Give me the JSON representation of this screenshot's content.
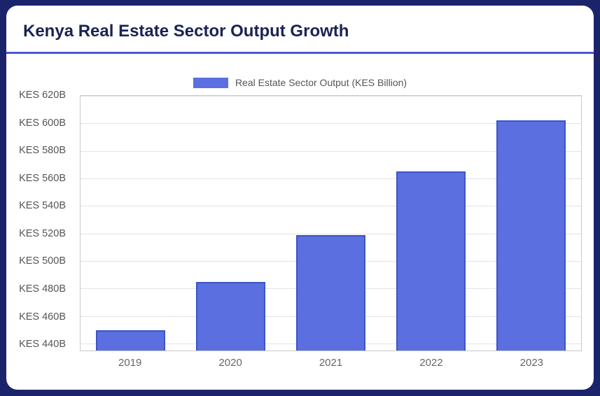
{
  "header": {
    "title": "Kenya Real Estate Sector Output Growth"
  },
  "legend": {
    "label": "Real Estate Sector Output (KES Billion)"
  },
  "chart_data": {
    "type": "bar",
    "title": "Kenya Real Estate Sector Output Growth",
    "series_label": "Real Estate Sector Output (KES Billion)",
    "categories": [
      "2019",
      "2020",
      "2021",
      "2022",
      "2023"
    ],
    "values": [
      450,
      485,
      519,
      565,
      602
    ],
    "xlabel": "",
    "ylabel": "KES Billion",
    "ylim": [
      435,
      620
    ],
    "yticks": [
      440,
      460,
      480,
      500,
      520,
      540,
      560,
      580,
      600,
      620
    ],
    "ytick_labels": [
      "KES 440B",
      "KES 460B",
      "KES 480B",
      "KES 500B",
      "KES 520B",
      "KES 540B",
      "KES 560B",
      "KES 580B",
      "KES 600B",
      "KES 620B"
    ],
    "grid": true,
    "legend_position": "top",
    "colors": {
      "bar_fill": "#5b6fe0",
      "bar_border": "#3c55c8",
      "divider_accent": "#5156d6",
      "title_text": "#1a2352",
      "frame_background": "#1b246b",
      "axis_text": "#555555"
    }
  }
}
